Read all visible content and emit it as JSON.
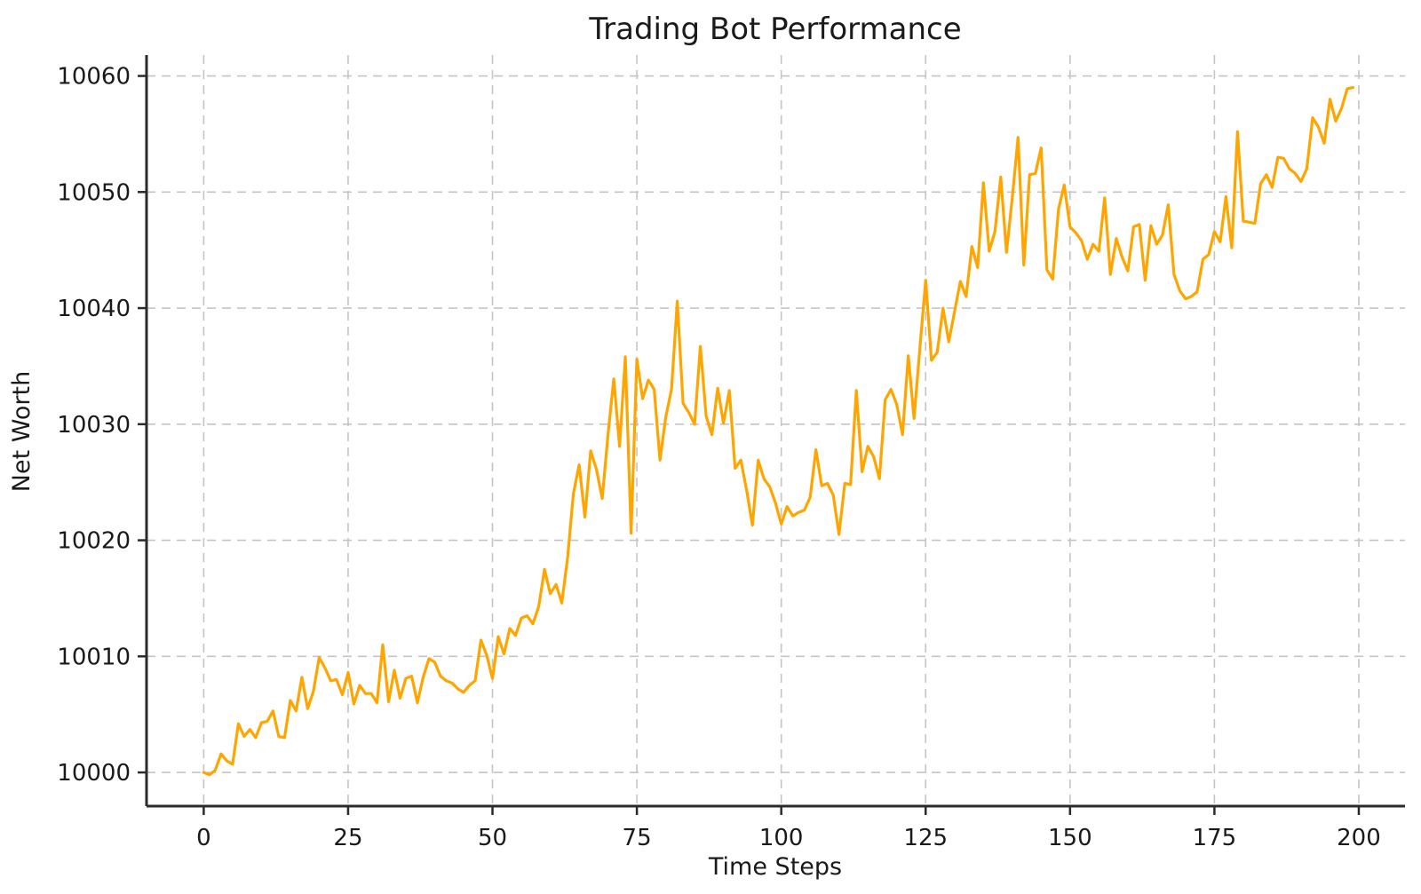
{
  "chart_data": {
    "type": "line",
    "title": "Trading Bot Performance",
    "xlabel": "Time Steps",
    "ylabel": "Net Worth",
    "grid": true,
    "grid_style": "dashed",
    "legend": "none",
    "x_ticks": [
      0,
      25,
      50,
      75,
      100,
      125,
      150,
      175,
      200
    ],
    "y_ticks": [
      10000,
      10010,
      10020,
      10030,
      10040,
      10050,
      10060
    ],
    "x_range": [
      -9.9,
      208.0
    ],
    "y_range": [
      9997.1,
      10061.8
    ],
    "series": [
      {
        "name": "Net Worth",
        "color": "#FFA500",
        "x_start": 0,
        "x_step": 1,
        "values": [
          10000.0,
          9999.8,
          10000.2,
          10001.6,
          10001.0,
          10000.7,
          10004.2,
          10003.1,
          10003.7,
          10003.0,
          10004.3,
          10004.4,
          10005.3,
          10003.1,
          10003.0,
          10006.2,
          10005.3,
          10008.2,
          10005.5,
          10007.0,
          10009.9,
          10009.0,
          10007.9,
          10008.0,
          10006.7,
          10008.6,
          10005.9,
          10007.5,
          10006.8,
          10006.8,
          10006.0,
          10011.0,
          10006.1,
          10008.8,
          10006.4,
          10008.1,
          10008.3,
          10006.0,
          10008.2,
          10009.8,
          10009.5,
          10008.3,
          10007.9,
          10007.7,
          10007.2,
          10006.9,
          10007.5,
          10007.9,
          10011.4,
          10010.1,
          10008.1,
          10011.7,
          10010.2,
          10012.4,
          10011.8,
          10013.3,
          10013.5,
          10012.8,
          10014.3,
          10017.5,
          10015.4,
          10016.2,
          10014.6,
          10018.5,
          10024.0,
          10026.5,
          10022.0,
          10027.7,
          10026.1,
          10023.6,
          10029.1,
          10033.9,
          10028.1,
          10035.8,
          10020.6,
          10035.6,
          10032.2,
          10033.8,
          10033.0,
          10026.9,
          10030.6,
          10033.0,
          10040.6,
          10031.8,
          10031.0,
          10030.0,
          10036.7,
          10030.7,
          10029.1,
          10033.1,
          10030.1,
          10032.9,
          10026.2,
          10026.9,
          10024.3,
          10021.3,
          10026.9,
          10025.3,
          10024.6,
          10023.2,
          10021.4,
          10022.9,
          10022.1,
          10022.4,
          10022.6,
          10023.7,
          10027.8,
          10024.7,
          10024.9,
          10023.9,
          10020.5,
          10024.9,
          10024.8,
          10032.9,
          10025.9,
          10028.1,
          10027.2,
          10025.3,
          10032.1,
          10033.0,
          10031.7,
          10029.1,
          10035.9,
          10030.5,
          10036.5,
          10042.4,
          10035.5,
          10036.2,
          10040.0,
          10037.1,
          10039.7,
          10042.3,
          10041.0,
          10045.3,
          10043.5,
          10050.8,
          10044.9,
          10046.6,
          10051.3,
          10044.8,
          10049.5,
          10054.7,
          10043.7,
          10051.5,
          10051.6,
          10053.8,
          10043.3,
          10042.5,
          10048.5,
          10050.6,
          10047.0,
          10046.5,
          10045.8,
          10044.2,
          10045.5,
          10044.9,
          10049.5,
          10042.9,
          10046.0,
          10044.4,
          10043.2,
          10047.0,
          10047.2,
          10042.4,
          10047.1,
          10045.5,
          10046.3,
          10048.9,
          10042.9,
          10041.5,
          10040.8,
          10041.0,
          10041.4,
          10044.2,
          10044.6,
          10046.6,
          10045.7,
          10049.6,
          10045.2,
          10055.2,
          10047.5,
          10047.4,
          10047.3,
          10050.7,
          10051.5,
          10050.4,
          10053.0,
          10052.9,
          10052.0,
          10051.6,
          10050.9,
          10052.0,
          10056.4,
          10055.6,
          10054.2,
          10058.0,
          10056.1,
          10057.2,
          10058.9,
          10059.0
        ]
      }
    ],
    "colors": {
      "line": "#FFA500",
      "grid": "#c4c4c4",
      "spine": "#2b2b2b",
      "text": "#1a1a1a",
      "background": "#ffffff"
    }
  }
}
